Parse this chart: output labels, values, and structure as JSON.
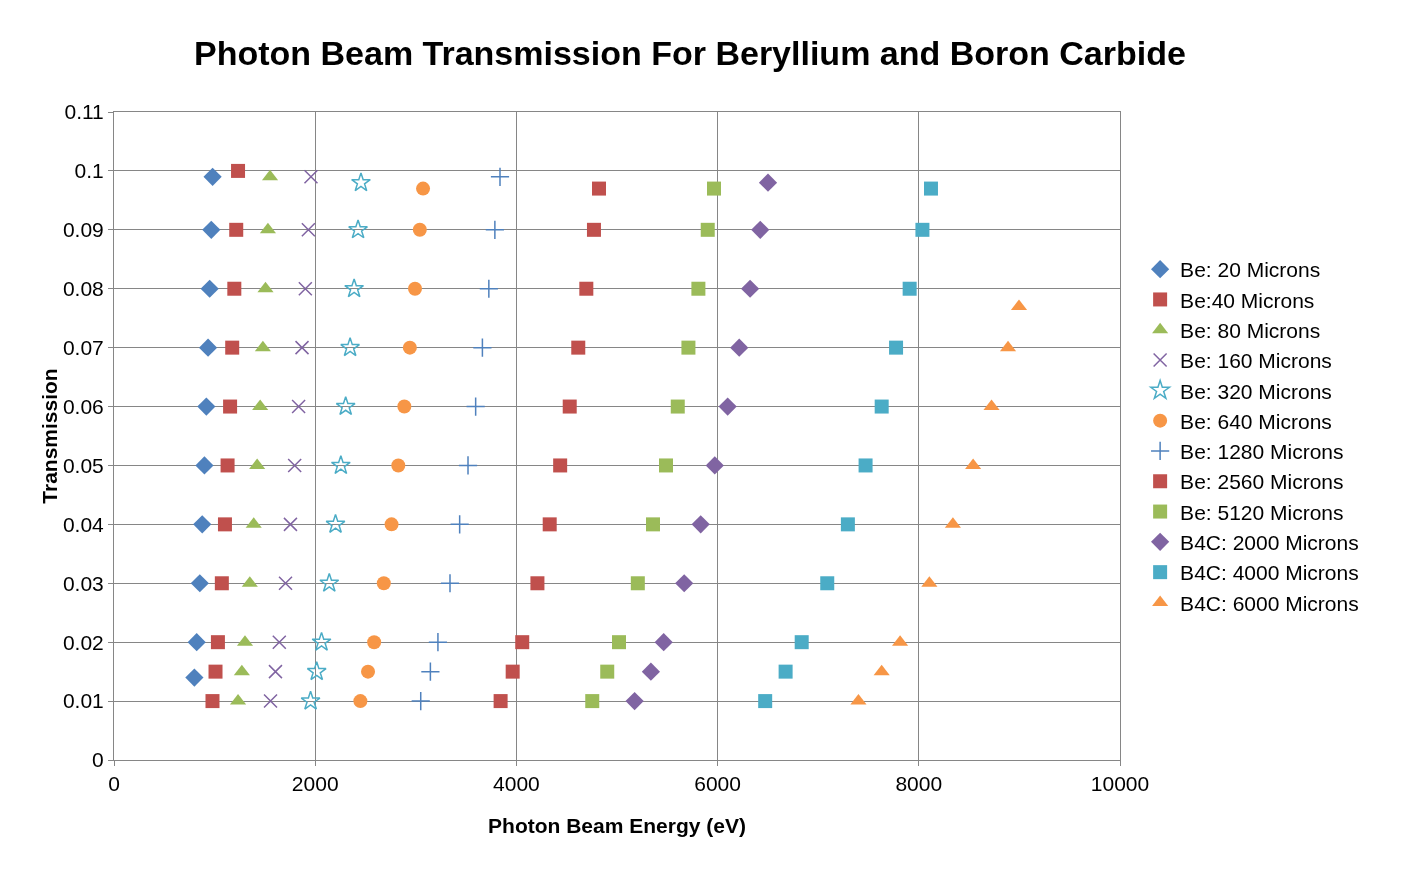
{
  "chart_data": {
    "type": "scatter",
    "title": "Photon Beam Transmission For Beryllium and Boron Carbide",
    "xlabel": "Photon Beam Energy (eV)",
    "ylabel": "Transmission",
    "xlim": [
      0,
      10000
    ],
    "xticks": [
      0,
      2000,
      4000,
      6000,
      8000,
      10000
    ],
    "ylim": [
      0,
      0.11
    ],
    "yticks": [
      0,
      0.01,
      0.02,
      0.03,
      0.04,
      0.05,
      0.06,
      0.07,
      0.08,
      0.09,
      0.1,
      0.11
    ],
    "grid": true,
    "legend": "right",
    "series": [
      {
        "name": "Be: 20 Microns",
        "color": "#4f81bd",
        "marker": "diamond",
        "x": [
          799,
          822,
          853,
          877,
          899,
          918,
          935,
          951,
          967,
          980
        ],
        "values": [
          0.014,
          0.02,
          0.03,
          0.04,
          0.05,
          0.06,
          0.07,
          0.08,
          0.09,
          0.099
        ]
      },
      {
        "name": "Be:40 Microns",
        "color": "#c0504d",
        "marker": "square",
        "x": [
          979,
          1009,
          1033,
          1072,
          1103,
          1129,
          1154,
          1175,
          1196,
          1215,
          1233
        ],
        "values": [
          0.01,
          0.015,
          0.02,
          0.03,
          0.04,
          0.05,
          0.06,
          0.07,
          0.08,
          0.09,
          0.1
        ]
      },
      {
        "name": "Be: 80 Microns",
        "color": "#9bbb59",
        "marker": "triangle",
        "x": [
          1233,
          1271,
          1302,
          1350,
          1389,
          1423,
          1453,
          1480,
          1506,
          1530,
          1551
        ],
        "values": [
          0.01,
          0.015,
          0.02,
          0.03,
          0.04,
          0.05,
          0.06,
          0.07,
          0.08,
          0.09,
          0.099
        ]
      },
      {
        "name": "Be: 160 Microns",
        "color": "#8064a2",
        "marker": "cross",
        "x": [
          1556,
          1605,
          1643,
          1705,
          1754,
          1796,
          1835,
          1869,
          1902,
          1932,
          1958
        ],
        "values": [
          0.01,
          0.015,
          0.02,
          0.03,
          0.04,
          0.05,
          0.06,
          0.07,
          0.08,
          0.09,
          0.099
        ]
      },
      {
        "name": "Be: 320 Microns",
        "color": "#4bacc6",
        "marker": "star",
        "x": [
          1954,
          2015,
          2063,
          2140,
          2202,
          2255,
          2303,
          2347,
          2387,
          2426,
          2455
        ],
        "values": [
          0.01,
          0.015,
          0.02,
          0.03,
          0.04,
          0.05,
          0.06,
          0.07,
          0.08,
          0.09,
          0.098
        ]
      },
      {
        "name": "Be: 640 Microns",
        "color": "#f79646",
        "marker": "circle",
        "x": [
          2449,
          2525,
          2586,
          2682,
          2759,
          2826,
          2886,
          2941,
          2992,
          3040,
          3072
        ],
        "values": [
          0.01,
          0.015,
          0.02,
          0.03,
          0.04,
          0.05,
          0.06,
          0.07,
          0.08,
          0.09,
          0.097
        ]
      },
      {
        "name": "Be: 1280 Microns",
        "color": "#4f81bd",
        "marker": "plus",
        "x": [
          3049,
          3145,
          3220,
          3340,
          3436,
          3519,
          3595,
          3662,
          3726,
          3786,
          3837
        ],
        "values": [
          0.01,
          0.015,
          0.02,
          0.03,
          0.04,
          0.05,
          0.06,
          0.07,
          0.08,
          0.09,
          0.099
        ]
      },
      {
        "name": "Be: 2560 Microns",
        "color": "#c0504d",
        "marker": "square",
        "x": [
          3843,
          3963,
          4058,
          4209,
          4331,
          4435,
          4530,
          4615,
          4695,
          4771,
          4821
        ],
        "values": [
          0.01,
          0.015,
          0.02,
          0.03,
          0.04,
          0.05,
          0.06,
          0.07,
          0.08,
          0.09,
          0.097
        ]
      },
      {
        "name": "Be: 5120 Microns",
        "color": "#9bbb59",
        "marker": "square",
        "x": [
          4754,
          4903,
          5020,
          5207,
          5358,
          5487,
          5604,
          5710,
          5809,
          5902,
          5964
        ],
        "values": [
          0.01,
          0.015,
          0.02,
          0.03,
          0.04,
          0.05,
          0.06,
          0.07,
          0.08,
          0.09,
          0.097
        ]
      },
      {
        "name": "B4C: 2000 Microns",
        "color": "#8064a2",
        "marker": "diamond",
        "x": [
          5175,
          5337,
          5464,
          5668,
          5832,
          5972,
          6100,
          6215,
          6323,
          6424,
          6501
        ],
        "values": [
          0.01,
          0.015,
          0.02,
          0.03,
          0.04,
          0.05,
          0.06,
          0.07,
          0.08,
          0.09,
          0.098
        ]
      },
      {
        "name": "B4C: 4000 Microns",
        "color": "#4bacc6",
        "marker": "square",
        "x": [
          6473,
          6676,
          6836,
          7090,
          7295,
          7471,
          7631,
          7774,
          7909,
          8036,
          8121
        ],
        "values": [
          0.01,
          0.015,
          0.02,
          0.03,
          0.04,
          0.05,
          0.06,
          0.07,
          0.08,
          0.09,
          0.097
        ]
      },
      {
        "name": "B4C: 6000 Microns",
        "color": "#f79646",
        "marker": "triangle",
        "x": [
          7400,
          7631,
          7814,
          8105,
          8339,
          8540,
          8723,
          8887,
          8996
        ],
        "values": [
          0.01,
          0.015,
          0.02,
          0.03,
          0.04,
          0.05,
          0.06,
          0.07,
          0.077
        ]
      }
    ]
  }
}
